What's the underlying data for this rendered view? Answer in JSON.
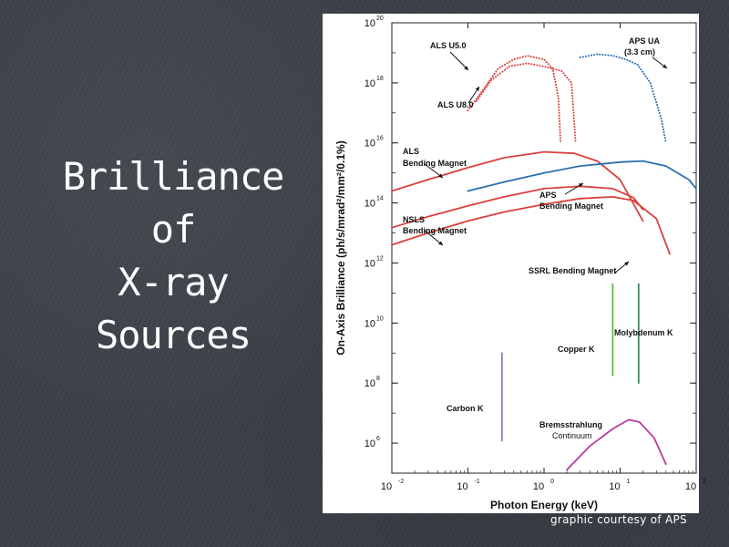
{
  "slide": {
    "title_lines": [
      "Brilliance of",
      "X-ray",
      "Sources"
    ],
    "credit": "graphic courtesy of APS"
  },
  "chart_data": {
    "type": "line",
    "x_scale": "log",
    "y_scale": "log",
    "xlabel": "Photon Energy (keV)",
    "ylabel": "On-Axis Brilliance (ph/s/mrad²/mm²/0.1%)",
    "xlim": [
      0.01,
      100
    ],
    "ylim": [
      100000.0,
      1e+20
    ],
    "x_ticks": [
      {
        "base": "10",
        "exp": "-2"
      },
      {
        "base": "10",
        "exp": "-1"
      },
      {
        "base": "10",
        "exp": "0"
      },
      {
        "base": "10",
        "exp": "1"
      },
      {
        "base": "10",
        "exp": "2"
      }
    ],
    "y_ticks": [
      {
        "base": "10",
        "exp": "6"
      },
      {
        "base": "10",
        "exp": "8"
      },
      {
        "base": "10",
        "exp": "10"
      },
      {
        "base": "10",
        "exp": "12"
      },
      {
        "base": "10",
        "exp": "14"
      },
      {
        "base": "10",
        "exp": "16"
      },
      {
        "base": "10",
        "exp": "18"
      },
      {
        "base": "10",
        "exp": "20"
      }
    ],
    "series": [
      {
        "name": "ALS U5.0",
        "color": "#d9413b",
        "style": "dotted",
        "points": [
          [
            0.1,
            1.2e+17
          ],
          [
            0.16,
            6e+17
          ],
          [
            0.25,
            3e+18
          ],
          [
            0.4,
            6e+18
          ],
          [
            0.6,
            8e+18
          ],
          [
            1.0,
            6e+18
          ],
          [
            1.3,
            3e+18
          ],
          [
            1.55,
            3e+17
          ],
          [
            1.65,
            1e+16
          ]
        ]
      },
      {
        "name": "ALS U8.0",
        "color": "#d9413b",
        "style": "dotted",
        "points": [
          [
            0.13,
            2.5e+17
          ],
          [
            0.2,
            1.2e+18
          ],
          [
            0.35,
            3.5e+18
          ],
          [
            0.6,
            4.5e+18
          ],
          [
            1.0,
            3.5e+18
          ],
          [
            1.7,
            2.5e+18
          ],
          [
            2.3,
            1e+18
          ],
          [
            2.6,
            1e+16
          ]
        ]
      },
      {
        "name": "APS UA (3.3 cm)",
        "color": "#2b6fb0",
        "style": "dotted",
        "points": [
          [
            3,
            7e+18
          ],
          [
            5,
            9e+18
          ],
          [
            8,
            8e+18
          ],
          [
            12,
            6e+18
          ],
          [
            17,
            4e+18
          ],
          [
            25,
            1e+18
          ],
          [
            35,
            6e+16
          ],
          [
            40,
            1e+16
          ]
        ]
      },
      {
        "name": "ALS Bending Magnet",
        "color": "#d9413b",
        "style": "solid",
        "points": [
          [
            0.01,
            250000000000000.0
          ],
          [
            0.03,
            600000000000000.0
          ],
          [
            0.1,
            1500000000000000.0
          ],
          [
            0.3,
            3200000000000000.0
          ],
          [
            1,
            5000000000000000.0
          ],
          [
            2.5,
            4500000000000000.0
          ],
          [
            5,
            2500000000000000.0
          ],
          [
            10,
            600000000000000.0
          ],
          [
            20,
            25000000000000.0
          ]
        ]
      },
      {
        "name": "APS Bending Magnet",
        "color": "#2b6fb0",
        "style": "solid",
        "points": [
          [
            0.1,
            250000000000000.0
          ],
          [
            0.3,
            500000000000000.0
          ],
          [
            1,
            1000000000000000.0
          ],
          [
            3,
            1700000000000000.0
          ],
          [
            10,
            2300000000000000.0
          ],
          [
            20,
            2500000000000000.0
          ],
          [
            40,
            1700000000000000.0
          ],
          [
            80,
            600000000000000.0
          ],
          [
            100,
            300000000000000.0
          ]
        ]
      },
      {
        "name": "NSLS Bending Magnet",
        "color": "#d9413b",
        "style": "solid",
        "points": [
          [
            0.01,
            15000000000000.0
          ],
          [
            0.03,
            35000000000000.0
          ],
          [
            0.1,
            80000000000000.0
          ],
          [
            0.3,
            160000000000000.0
          ],
          [
            1,
            300000000000000.0
          ],
          [
            3,
            360000000000000.0
          ],
          [
            8,
            300000000000000.0
          ],
          [
            15,
            150000000000000.0
          ],
          [
            20,
            60000000000000.0
          ]
        ]
      },
      {
        "name": "SSRL Bending Magnet",
        "color": "#d9413b",
        "style": "solid",
        "points": [
          [
            0.01,
            4000000000000.0
          ],
          [
            0.03,
            10000000000000.0
          ],
          [
            0.1,
            25000000000000.0
          ],
          [
            0.3,
            50000000000000.0
          ],
          [
            1,
            90000000000000.0
          ],
          [
            3,
            140000000000000.0
          ],
          [
            8,
            160000000000000.0
          ],
          [
            15,
            120000000000000.0
          ],
          [
            30,
            30000000000000.0
          ],
          [
            45,
            2000000000000.0
          ]
        ]
      },
      {
        "name": "Copper K",
        "color": "#5cbf40",
        "style": "solid",
        "points": [
          [
            8.0,
            180000000.0
          ],
          [
            8.0,
            200000000000.0
          ]
        ]
      },
      {
        "name": "Molybdenum K",
        "color": "#3a8c5a",
        "style": "solid",
        "points": [
          [
            17.5,
            100000000.0
          ],
          [
            17.5,
            200000000000.0
          ]
        ]
      },
      {
        "name": "Carbon K",
        "color": "#8a7ab5",
        "style": "solid",
        "points": [
          [
            0.28,
            1200000.0
          ],
          [
            0.28,
            1000000000.0
          ]
        ]
      },
      {
        "name": "Bremsstrahlung Continuum",
        "color": "#b83aa0",
        "style": "solid",
        "points": [
          [
            2,
            130000.0
          ],
          [
            4,
            800000.0
          ],
          [
            8,
            3000000.0
          ],
          [
            13,
            6000000.0
          ],
          [
            18,
            5000000.0
          ],
          [
            28,
            1500000.0
          ],
          [
            40,
            200000.0
          ]
        ]
      }
    ],
    "annotations": [
      {
        "text": "ALS U5.0"
      },
      {
        "text": "APS UA"
      },
      {
        "text": "(3.3 cm)"
      },
      {
        "text": "ALS U8.0"
      },
      {
        "text": "ALS"
      },
      {
        "text": "Bending Magnet"
      },
      {
        "text": "APS"
      },
      {
        "text": "Bending Magnet"
      },
      {
        "text": "NSLS"
      },
      {
        "text": "Bending Magnet"
      },
      {
        "text": "SSRL Bending Magnet"
      },
      {
        "text": "Molybdenum K"
      },
      {
        "text": "Copper K"
      },
      {
        "text": "Carbon K"
      },
      {
        "text": "Bremsstrahlung"
      },
      {
        "text": "Continuum"
      }
    ]
  }
}
